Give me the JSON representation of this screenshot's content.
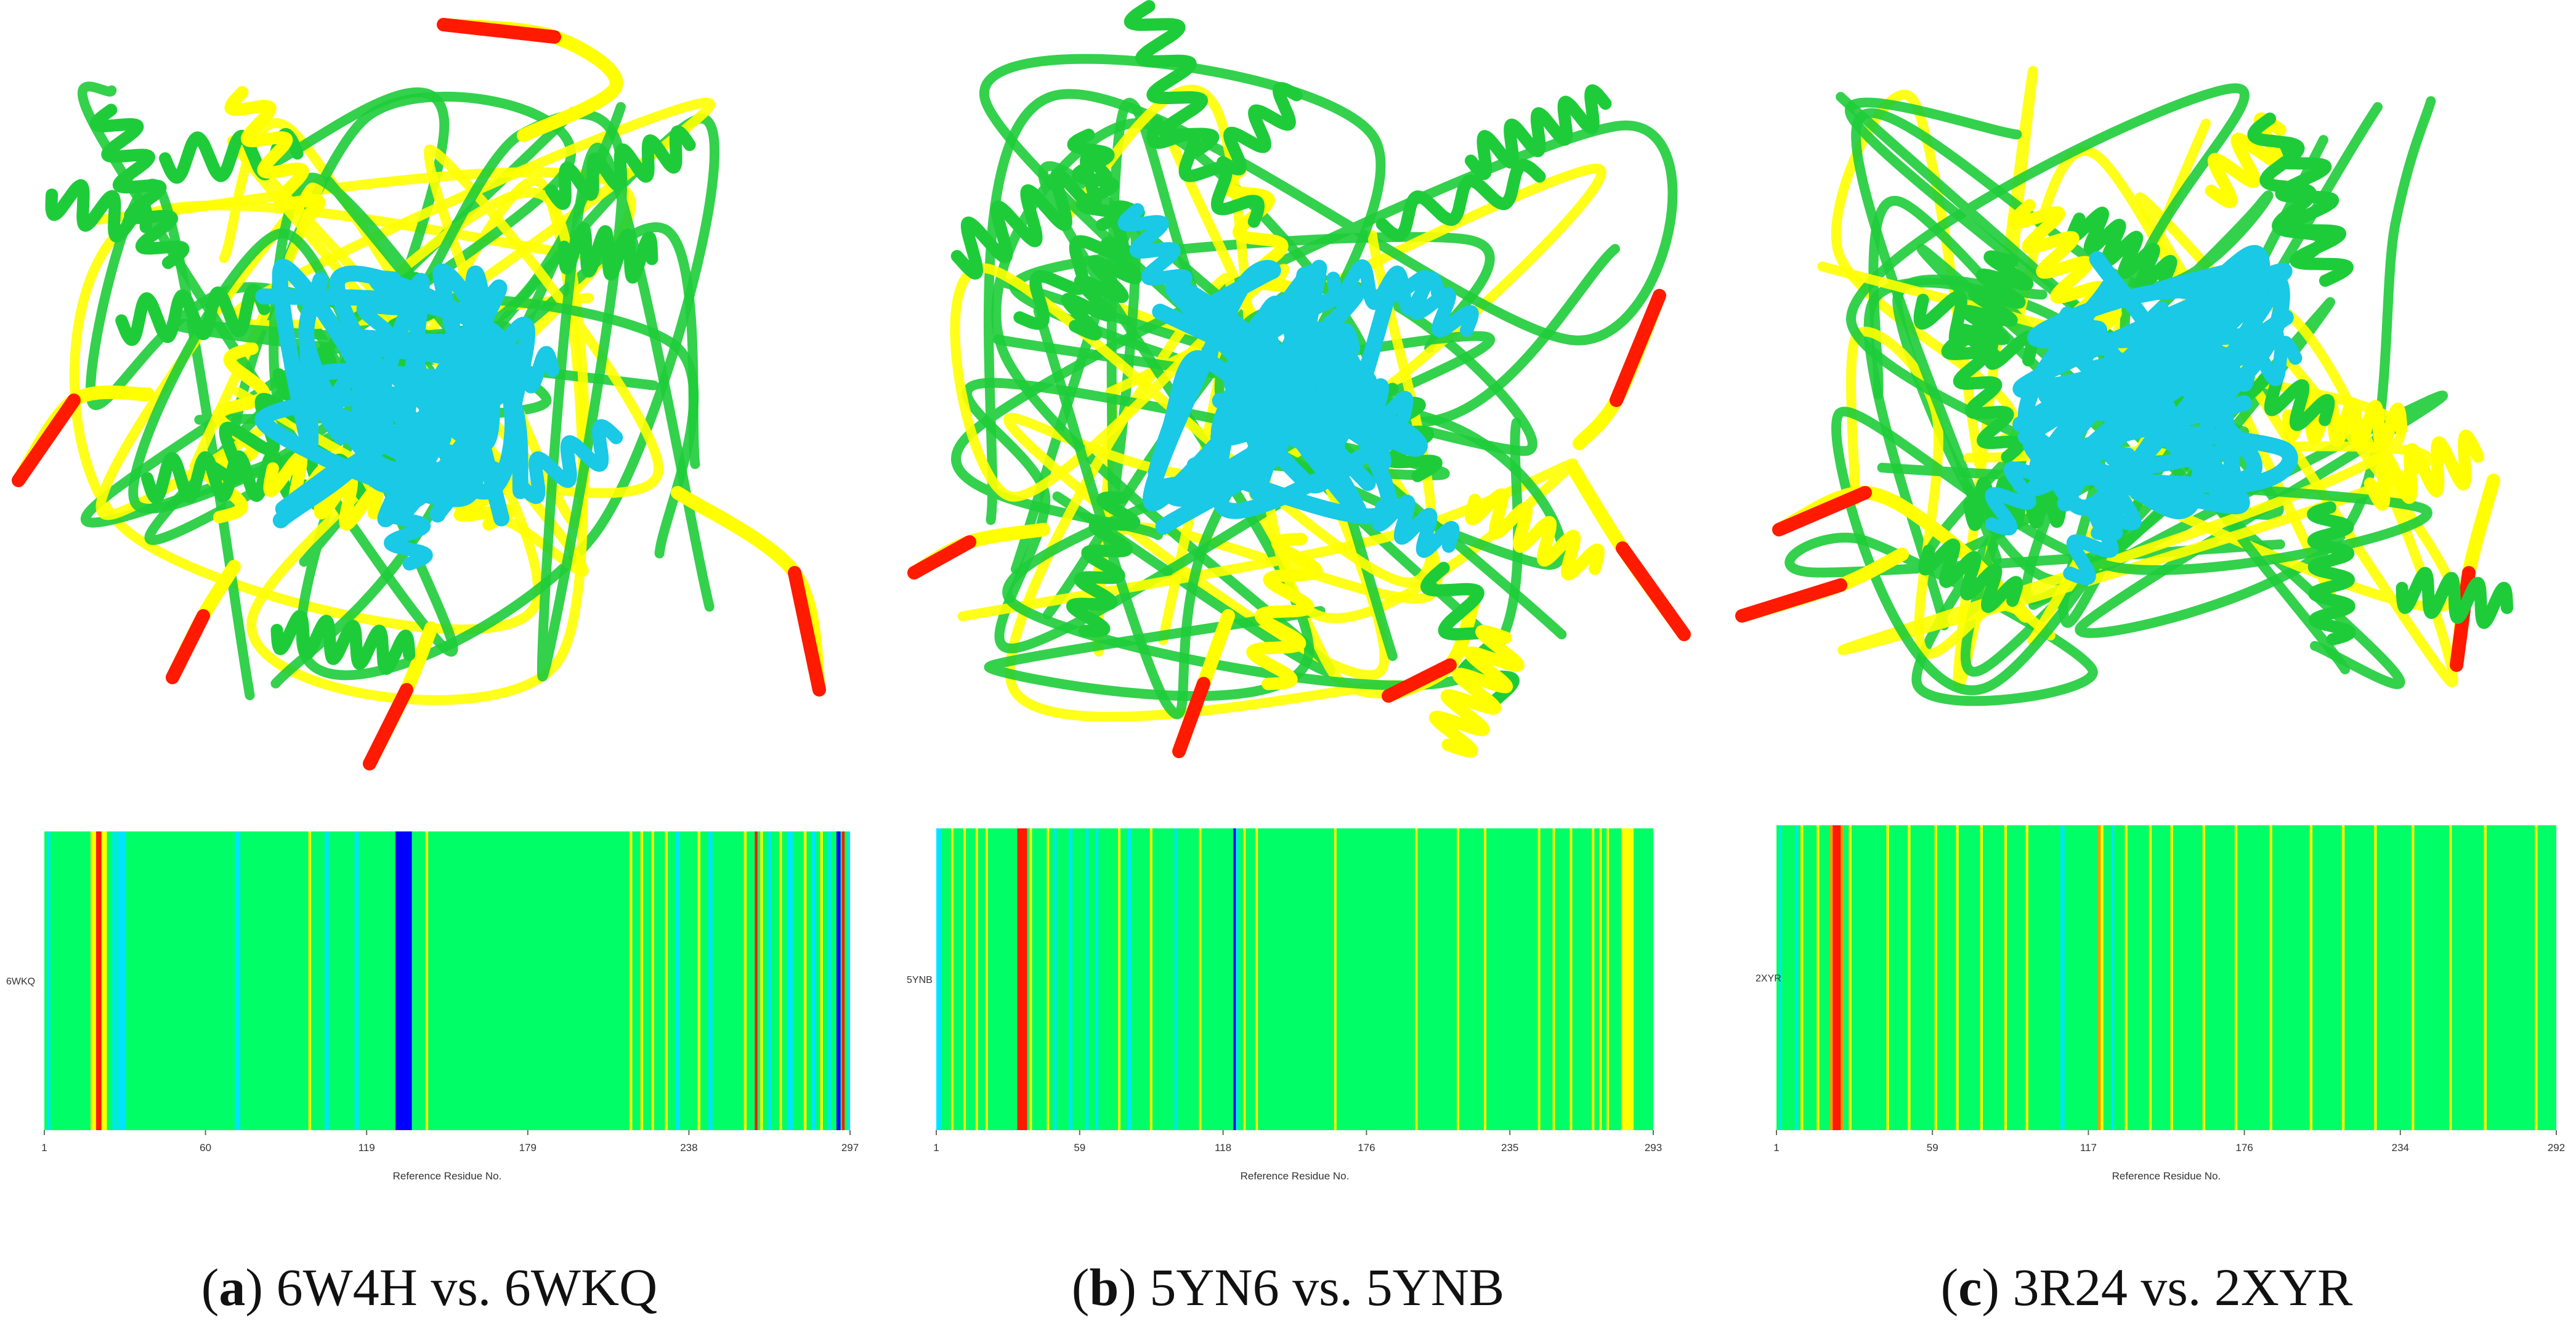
{
  "colors": {
    "base": "#7fff00",
    "yellow": "#ffff00",
    "orange": "#ff9900",
    "red": "#ff1a00",
    "cyan": "#00e5ff",
    "blue": "#0000ff",
    "green": "#00ff66",
    "ribbon_core": "#1ecc3a",
    "ribbon_center": "#19c9e6"
  },
  "chart_data": [
    {
      "type": "heatmap",
      "caption_letter": "a",
      "caption_text": " 6W4H vs. 6WKQ",
      "ylabel": "6WKQ",
      "xlabel": "Reference Residue No.",
      "xticks": [
        "1",
        "60",
        "119",
        "179",
        "238",
        "297"
      ],
      "xlim": [
        1,
        297
      ],
      "base_value": "green",
      "bands": [
        {
          "x": 2,
          "w": 1.2,
          "c": "cyan"
        },
        {
          "x": 5,
          "w": 1,
          "c": "green"
        },
        {
          "x": 18,
          "w": 2,
          "c": "yellow"
        },
        {
          "x": 20,
          "w": 2,
          "c": "red"
        },
        {
          "x": 22,
          "w": 2,
          "c": "yellow"
        },
        {
          "x": 24,
          "w": 1,
          "c": "green"
        },
        {
          "x": 26,
          "w": 1.5,
          "c": "cyan"
        },
        {
          "x": 28,
          "w": 3,
          "c": "cyan"
        },
        {
          "x": 31,
          "w": 1,
          "c": "green"
        },
        {
          "x": 71,
          "w": 2,
          "c": "cyan"
        },
        {
          "x": 98,
          "w": 1,
          "c": "yellow"
        },
        {
          "x": 104,
          "w": 1.5,
          "c": "cyan"
        },
        {
          "x": 108,
          "w": 1,
          "c": "green"
        },
        {
          "x": 115,
          "w": 1.5,
          "c": "cyan"
        },
        {
          "x": 118,
          "w": 1,
          "c": "green"
        },
        {
          "x": 130,
          "w": 6,
          "c": "blue"
        },
        {
          "x": 138,
          "w": 1,
          "c": "green"
        },
        {
          "x": 141,
          "w": 1,
          "c": "yellow"
        },
        {
          "x": 216,
          "w": 1,
          "c": "yellow"
        },
        {
          "x": 220,
          "w": 1,
          "c": "yellow"
        },
        {
          "x": 224,
          "w": 1,
          "c": "yellow"
        },
        {
          "x": 229,
          "w": 1,
          "c": "yellow"
        },
        {
          "x": 233,
          "w": 1.5,
          "c": "cyan"
        },
        {
          "x": 241,
          "w": 1,
          "c": "yellow"
        },
        {
          "x": 245,
          "w": 1.5,
          "c": "cyan"
        },
        {
          "x": 249,
          "w": 1,
          "c": "green"
        },
        {
          "x": 258,
          "w": 1,
          "c": "yellow"
        },
        {
          "x": 262,
          "w": 1,
          "c": "red"
        },
        {
          "x": 264,
          "w": 1,
          "c": "yellow"
        },
        {
          "x": 267,
          "w": 1,
          "c": "cyan"
        },
        {
          "x": 271,
          "w": 1,
          "c": "yellow"
        },
        {
          "x": 274,
          "w": 2,
          "c": "cyan"
        },
        {
          "x": 277,
          "w": 1,
          "c": "green"
        },
        {
          "x": 280,
          "w": 1,
          "c": "yellow"
        },
        {
          "x": 283,
          "w": 1.5,
          "c": "cyan"
        },
        {
          "x": 286,
          "w": 1,
          "c": "yellow"
        },
        {
          "x": 289,
          "w": 1.2,
          "c": "cyan"
        },
        {
          "x": 292,
          "w": 1.5,
          "c": "blue"
        },
        {
          "x": 294,
          "w": 1,
          "c": "red"
        },
        {
          "x": 296,
          "w": 1,
          "c": "cyan"
        }
      ]
    },
    {
      "type": "heatmap",
      "caption_letter": "b",
      "caption_text": " 5YN6 vs. 5YNB",
      "ylabel": "5YNB",
      "xlabel": "Reference Residue No.",
      "xticks": [
        "1",
        "59",
        "118",
        "176",
        "235",
        "293"
      ],
      "xlim": [
        1,
        293
      ],
      "base_value": "green",
      "bands": [
        {
          "x": 1,
          "w": 2,
          "c": "cyan"
        },
        {
          "x": 4,
          "w": 1,
          "c": "green"
        },
        {
          "x": 7,
          "w": 1,
          "c": "yellow"
        },
        {
          "x": 12,
          "w": 1,
          "c": "yellow"
        },
        {
          "x": 17,
          "w": 1,
          "c": "yellow"
        },
        {
          "x": 21,
          "w": 1,
          "c": "yellow"
        },
        {
          "x": 34,
          "w": 4,
          "c": "red"
        },
        {
          "x": 39,
          "w": 1,
          "c": "yellow"
        },
        {
          "x": 42,
          "w": 1.5,
          "c": "green"
        },
        {
          "x": 46,
          "w": 1,
          "c": "yellow"
        },
        {
          "x": 49,
          "w": 1,
          "c": "cyan"
        },
        {
          "x": 52,
          "w": 1,
          "c": "green"
        },
        {
          "x": 55,
          "w": 1.5,
          "c": "cyan"
        },
        {
          "x": 58,
          "w": 1,
          "c": "green"
        },
        {
          "x": 62,
          "w": 1,
          "c": "cyan"
        },
        {
          "x": 66,
          "w": 1,
          "c": "cyan"
        },
        {
          "x": 70,
          "w": 1,
          "c": "green"
        },
        {
          "x": 75,
          "w": 1,
          "c": "yellow"
        },
        {
          "x": 79,
          "w": 1.5,
          "c": "cyan"
        },
        {
          "x": 84,
          "w": 1,
          "c": "green"
        },
        {
          "x": 88,
          "w": 1,
          "c": "yellow"
        },
        {
          "x": 93,
          "w": 1,
          "c": "green"
        },
        {
          "x": 98,
          "w": 1,
          "c": "cyan"
        },
        {
          "x": 103,
          "w": 1,
          "c": "green"
        },
        {
          "x": 108,
          "w": 1,
          "c": "yellow"
        },
        {
          "x": 113,
          "w": 1,
          "c": "green"
        },
        {
          "x": 118,
          "w": 1,
          "c": "green"
        },
        {
          "x": 122,
          "w": 1,
          "c": "blue"
        },
        {
          "x": 123,
          "w": 1,
          "c": "cyan"
        },
        {
          "x": 126,
          "w": 1,
          "c": "yellow"
        },
        {
          "x": 131,
          "w": 1,
          "c": "yellow"
        },
        {
          "x": 136,
          "w": 1,
          "c": "green"
        },
        {
          "x": 150,
          "w": 1,
          "c": "green"
        },
        {
          "x": 163,
          "w": 1,
          "c": "yellow"
        },
        {
          "x": 196,
          "w": 1,
          "c": "yellow"
        },
        {
          "x": 203,
          "w": 1,
          "c": "green"
        },
        {
          "x": 213,
          "w": 1,
          "c": "yellow"
        },
        {
          "x": 224,
          "w": 1,
          "c": "yellow"
        },
        {
          "x": 232,
          "w": 1,
          "c": "green"
        },
        {
          "x": 240,
          "w": 1,
          "c": "green"
        },
        {
          "x": 246,
          "w": 1,
          "c": "yellow"
        },
        {
          "x": 252,
          "w": 1,
          "c": "yellow"
        },
        {
          "x": 259,
          "w": 1,
          "c": "yellow"
        },
        {
          "x": 263,
          "w": 1,
          "c": "green"
        },
        {
          "x": 268,
          "w": 1,
          "c": "yellow"
        },
        {
          "x": 271,
          "w": 1,
          "c": "yellow"
        },
        {
          "x": 274,
          "w": 1,
          "c": "yellow"
        },
        {
          "x": 280,
          "w": 5,
          "c": "yellow"
        }
      ]
    },
    {
      "type": "heatmap",
      "caption_letter": "c",
      "caption_text": " 3R24 vs. 2XYR",
      "ylabel": "2XYR",
      "xlabel": "Reference Residue No.",
      "xticks": [
        "1",
        "59",
        "117",
        "176",
        "234",
        "292"
      ],
      "xlim": [
        1,
        292
      ],
      "base_value": "green",
      "bands": [
        {
          "x": 2,
          "w": 1,
          "c": "cyan"
        },
        {
          "x": 5,
          "w": 1.5,
          "c": "green"
        },
        {
          "x": 8,
          "w": 1,
          "c": "cyan"
        },
        {
          "x": 10,
          "w": 1,
          "c": "yellow"
        },
        {
          "x": 13,
          "w": 1,
          "c": "green"
        },
        {
          "x": 16,
          "w": 1,
          "c": "yellow"
        },
        {
          "x": 19,
          "w": 1,
          "c": "green"
        },
        {
          "x": 21,
          "w": 1,
          "c": "orange"
        },
        {
          "x": 22,
          "w": 3,
          "c": "red"
        },
        {
          "x": 25,
          "w": 1,
          "c": "orange"
        },
        {
          "x": 28,
          "w": 1,
          "c": "yellow"
        },
        {
          "x": 31,
          "w": 1,
          "c": "green"
        },
        {
          "x": 36,
          "w": 1,
          "c": "green"
        },
        {
          "x": 42,
          "w": 1,
          "c": "yellow"
        },
        {
          "x": 50,
          "w": 1,
          "c": "yellow"
        },
        {
          "x": 60,
          "w": 1,
          "c": "yellow"
        },
        {
          "x": 68,
          "w": 1,
          "c": "yellow"
        },
        {
          "x": 77,
          "w": 1,
          "c": "yellow"
        },
        {
          "x": 86,
          "w": 1,
          "c": "yellow"
        },
        {
          "x": 94,
          "w": 1,
          "c": "yellow"
        },
        {
          "x": 101,
          "w": 1,
          "c": "green"
        },
        {
          "x": 104,
          "w": 1,
          "c": "green"
        },
        {
          "x": 107,
          "w": 1.5,
          "c": "cyan"
        },
        {
          "x": 110,
          "w": 1,
          "c": "green"
        },
        {
          "x": 114,
          "w": 1,
          "c": "green"
        },
        {
          "x": 121,
          "w": 1,
          "c": "orange"
        },
        {
          "x": 122,
          "w": 1,
          "c": "yellow"
        },
        {
          "x": 126,
          "w": 1,
          "c": "cyan"
        },
        {
          "x": 128,
          "w": 1,
          "c": "green"
        },
        {
          "x": 131,
          "w": 1,
          "c": "yellow"
        },
        {
          "x": 135,
          "w": 1,
          "c": "green"
        },
        {
          "x": 140,
          "w": 1,
          "c": "yellow"
        },
        {
          "x": 148,
          "w": 1,
          "c": "yellow"
        },
        {
          "x": 160,
          "w": 1,
          "c": "yellow"
        },
        {
          "x": 172,
          "w": 1,
          "c": "yellow"
        },
        {
          "x": 185,
          "w": 1,
          "c": "yellow"
        },
        {
          "x": 200,
          "w": 1,
          "c": "yellow"
        },
        {
          "x": 212,
          "w": 1,
          "c": "yellow"
        },
        {
          "x": 224,
          "w": 1,
          "c": "yellow"
        },
        {
          "x": 238,
          "w": 1,
          "c": "yellow"
        },
        {
          "x": 252,
          "w": 1,
          "c": "yellow"
        },
        {
          "x": 265,
          "w": 1,
          "c": "yellow"
        },
        {
          "x": 277,
          "w": 1,
          "c": "green"
        },
        {
          "x": 284,
          "w": 1,
          "c": "yellow"
        },
        {
          "x": 287,
          "w": 1,
          "c": "green"
        }
      ]
    }
  ]
}
